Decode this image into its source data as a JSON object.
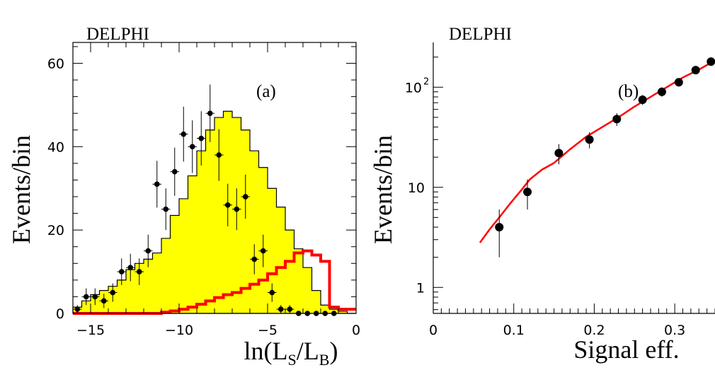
{
  "chart_data": [
    {
      "type": "histogram",
      "panel_label": "(a)",
      "experiment_label": "DELPHI",
      "xlabel": "ln(L_S/L_B)",
      "xlabel_parts": {
        "main": "ln(L",
        "sub1": "S",
        "mid": "/L",
        "sub2": "B",
        "end": ")"
      },
      "ylabel": "Events/bin",
      "xlim": [
        -16,
        0
      ],
      "ylim": [
        0,
        65
      ],
      "x_ticks": [
        -15,
        -10,
        -5,
        0
      ],
      "x_tick_labels": [
        "−15",
        "−10",
        "−5",
        "0"
      ],
      "y_ticks": [
        0,
        20,
        40,
        60
      ],
      "y_tick_labels": [
        "0",
        "20",
        "40",
        "60"
      ],
      "bin_edges": [
        -16,
        -15.5,
        -15,
        -14.5,
        -14,
        -13.5,
        -13,
        -12.5,
        -12,
        -11.5,
        -11,
        -10.5,
        -10,
        -9.5,
        -9,
        -8.5,
        -8,
        -7.5,
        -7,
        -6.5,
        -6,
        -5.5,
        -5,
        -4.5,
        -4,
        -3.5,
        -3,
        -2.5,
        -2,
        -1.5,
        -1,
        -0.5,
        0
      ],
      "series": [
        {
          "kind": "background_mc",
          "color": "#ffff00",
          "values": [
            1.5,
            3,
            4.5,
            5.5,
            6.5,
            8,
            10.5,
            12,
            13,
            14.5,
            18,
            23.5,
            27.5,
            33,
            39,
            44,
            47,
            48.5,
            47,
            44,
            39,
            35,
            30,
            25.5,
            20,
            15.5,
            11,
            5.5,
            2,
            1,
            0.5,
            0
          ]
        },
        {
          "kind": "signal_mc",
          "color": "#ff0000",
          "values": [
            0,
            0,
            0,
            0,
            0,
            0,
            0,
            0,
            0,
            0,
            0.3,
            0.6,
            1,
            1.5,
            2.2,
            3,
            3.8,
            4.5,
            5,
            6,
            7,
            8,
            9.5,
            11,
            12.5,
            14.5,
            15,
            14,
            12.5,
            1.5,
            1,
            1
          ]
        },
        {
          "kind": "data",
          "color": "#000000",
          "x": [
            -15.75,
            -15.25,
            -14.75,
            -14.25,
            -13.75,
            -13.25,
            -12.75,
            -12.25,
            -11.75,
            -11.25,
            -10.75,
            -10.25,
            -9.75,
            -9.25,
            -8.75,
            -8.25,
            -7.75,
            -7.25,
            -6.75,
            -6.25,
            -5.75,
            -5.25,
            -4.75,
            -4.25,
            -3.75,
            -3.25,
            -2.75,
            -2.25,
            -1.75,
            -1.25
          ],
          "y": [
            1,
            4,
            4,
            3,
            5,
            10,
            11,
            10,
            15,
            31,
            25,
            34,
            43,
            40,
            42,
            48,
            38,
            26,
            25,
            28,
            13,
            15,
            5,
            1,
            1,
            0,
            0,
            0,
            0,
            0
          ],
          "err": [
            1,
            2,
            2,
            1.7,
            2.2,
            3.2,
            3.3,
            3.2,
            3.9,
            5.6,
            5,
            5.8,
            6.6,
            6.3,
            6.5,
            6.9,
            6.2,
            5.1,
            5,
            5.3,
            3.6,
            3.9,
            2.2,
            1,
            1,
            0,
            0,
            0,
            0,
            0
          ]
        }
      ]
    },
    {
      "type": "scatter",
      "panel_label": "(b)",
      "experiment_label": "DELPHI",
      "xlabel": "Signal eff.",
      "ylabel": "Events/bin",
      "yscale": "log",
      "xlim": [
        0,
        0.35
      ],
      "ylim": [
        0.55,
        280
      ],
      "x_ticks": [
        0,
        0.1,
        0.2,
        0.3
      ],
      "x_tick_labels": [
        "0",
        "0.1",
        "0.2",
        "0.3"
      ],
      "y_tick_labels": [
        {
          "value": 1,
          "base": "1",
          "exp": ""
        },
        {
          "value": 10,
          "base": "10",
          "exp": ""
        },
        {
          "value": 100,
          "base": "10",
          "exp": "2"
        }
      ],
      "series": [
        {
          "kind": "data",
          "color": "#000000",
          "x": [
            0.082,
            0.117,
            0.156,
            0.194,
            0.228,
            0.26,
            0.284,
            0.305,
            0.326,
            0.345
          ],
          "y": [
            4,
            9,
            22,
            30,
            48,
            75,
            90,
            112,
            148,
            180
          ],
          "err_low": [
            2,
            3,
            5,
            5.5,
            7,
            8.5,
            9.5,
            10.5,
            12,
            13
          ],
          "err_high": [
            2,
            3,
            5,
            5.5,
            7,
            8.5,
            9.5,
            10.5,
            12,
            13
          ]
        },
        {
          "kind": "expected_mc",
          "color": "#ff0000",
          "x": [
            0.058,
            0.07,
            0.082,
            0.095,
            0.11,
            0.12,
            0.135,
            0.15,
            0.17,
            0.19,
            0.21,
            0.23,
            0.25,
            0.27,
            0.29,
            0.31,
            0.33,
            0.35
          ],
          "y": [
            2.8,
            3.8,
            5,
            6.8,
            9.5,
            12,
            15,
            17.5,
            24,
            32,
            40,
            50,
            64,
            80,
            100,
            125,
            150,
            185
          ]
        }
      ]
    }
  ]
}
